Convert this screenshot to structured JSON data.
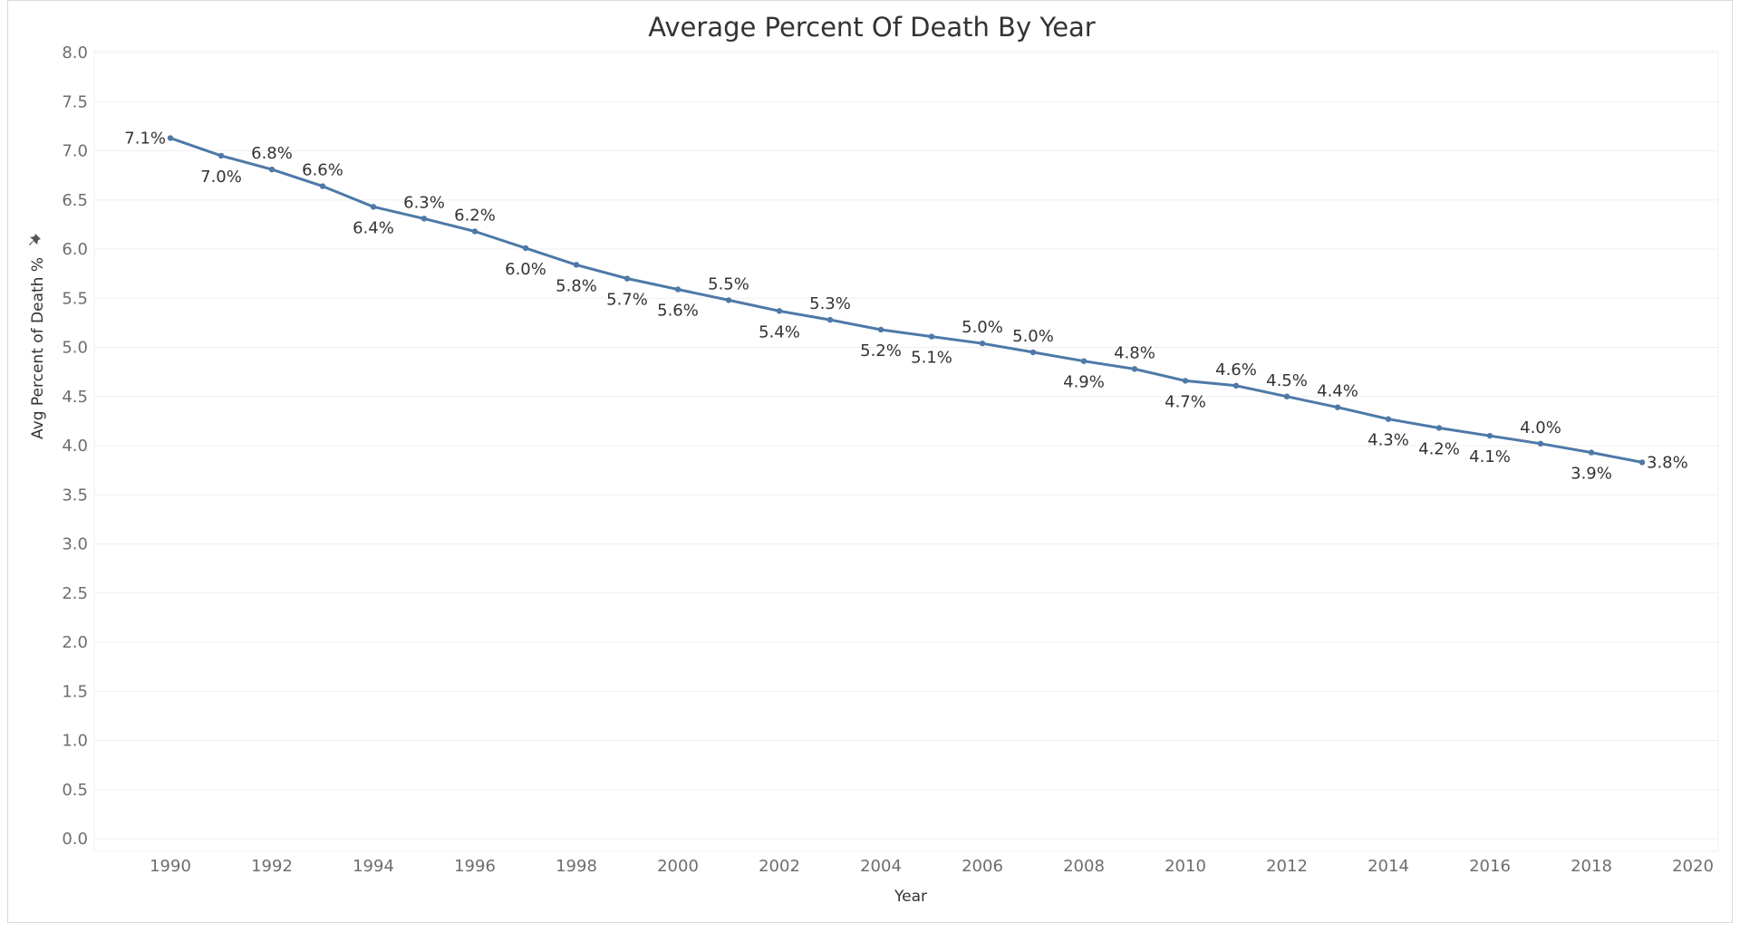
{
  "chart_data": {
    "type": "line",
    "title": "Average Percent Of Death By Year",
    "xlabel": "Year",
    "ylabel": "Avg Percent of Death %",
    "ylabel_icon": "pin-icon",
    "xlim": [
      1988.5,
      2020.5
    ],
    "ylim": [
      0,
      8
    ],
    "x_ticks": [
      "1990",
      "1992",
      "1994",
      "1996",
      "1998",
      "2000",
      "2002",
      "2004",
      "2006",
      "2008",
      "2010",
      "2012",
      "2014",
      "2016",
      "2018",
      "2020"
    ],
    "y_ticks": [
      "0.0",
      "0.5",
      "1.0",
      "1.5",
      "2.0",
      "2.5",
      "3.0",
      "3.5",
      "4.0",
      "4.5",
      "5.0",
      "5.5",
      "6.0",
      "6.5",
      "7.0",
      "7.5",
      "8.0"
    ],
    "grid": true,
    "line_color": "#4e79a7",
    "series": [
      {
        "x": [
          1990,
          1991,
          1992,
          1993,
          1994,
          1995,
          1996,
          1997,
          1998,
          1999,
          2000,
          2001,
          2002,
          2003,
          2004,
          2005,
          2006,
          2007,
          2008,
          2009,
          2010,
          2011,
          2012,
          2013,
          2014,
          2015,
          2016,
          2017,
          2018,
          2019
        ],
        "values": [
          7.13,
          6.95,
          6.81,
          6.64,
          6.43,
          6.31,
          6.18,
          6.01,
          5.84,
          5.7,
          5.59,
          5.48,
          5.37,
          5.28,
          5.18,
          5.11,
          5.04,
          4.95,
          4.86,
          4.78,
          4.66,
          4.61,
          4.5,
          4.39,
          4.27,
          4.18,
          4.1,
          4.02,
          3.93,
          3.83
        ],
        "labels": [
          "7.1%",
          "7.0%",
          "6.8%",
          "6.6%",
          "6.4%",
          "6.3%",
          "6.2%",
          "6.0%",
          "5.8%",
          "5.7%",
          "5.6%",
          "5.5%",
          "5.4%",
          "5.3%",
          "5.2%",
          "5.1%",
          "5.0%",
          "5.0%",
          "4.9%",
          "4.8%",
          "4.7%",
          "4.6%",
          "4.5%",
          "4.4%",
          "4.3%",
          "4.2%",
          "4.1%",
          "4.0%",
          "3.9%",
          "3.8%"
        ],
        "label_side": [
          "left",
          "below",
          "above",
          "above",
          "below",
          "above",
          "above",
          "below",
          "below",
          "below",
          "below",
          "above",
          "below",
          "above",
          "below",
          "below",
          "above",
          "above",
          "below",
          "above",
          "below",
          "above",
          "above",
          "above",
          "below",
          "below",
          "below",
          "above",
          "below",
          "right"
        ]
      }
    ]
  }
}
